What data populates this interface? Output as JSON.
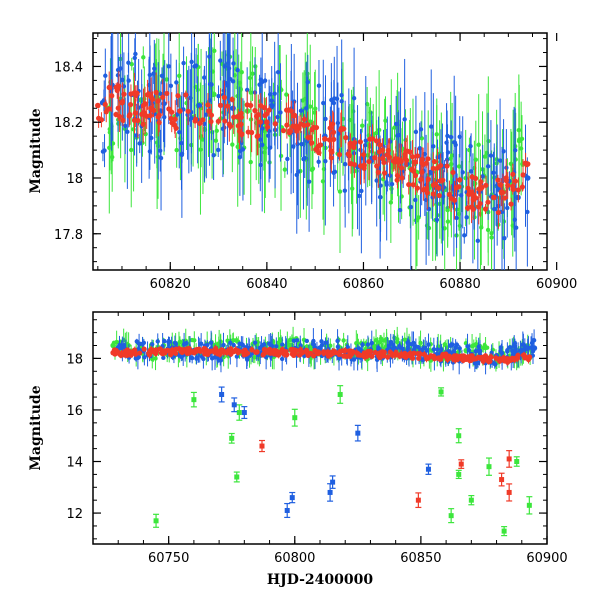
{
  "colors": {
    "blue": "#1f5fe0",
    "green": "#3ce63c",
    "red": "#f03a28",
    "axis": "#000000"
  },
  "chart_data": [
    {
      "type": "scatter",
      "name": "top-panel",
      "title": "",
      "xlabel": "",
      "ylabel": "Magnitude",
      "xlim": [
        60804,
        60898
      ],
      "ylim": [
        18.52,
        17.67
      ],
      "y_inverted": true,
      "xticks": [
        60820,
        60840,
        60860,
        60880,
        60900
      ],
      "xtick_labels": [
        "60820",
        "60840",
        "60860",
        "60880",
        "60900"
      ],
      "yticks": [
        17.8,
        18,
        18.2,
        18.4
      ],
      "ytick_labels": [
        "17.8",
        "18",
        "18.2",
        "18.4"
      ],
      "error_bars": true,
      "grid": false,
      "trend": {
        "note": "magnitude brightens from ~18.27 near 60804 to ~17.93 near 60885"
      },
      "series": [
        {
          "color": "blue",
          "x": [
            60806,
            60812,
            60818,
            60826,
            60833,
            60839,
            60841,
            60846,
            60852,
            60858,
            60864,
            60869,
            60874,
            60879,
            60884,
            60888,
            60892,
            60894
          ],
          "y": [
            18.27,
            18.3,
            18.24,
            18.26,
            18.25,
            18.2,
            18.26,
            18.18,
            18.15,
            18.12,
            18.08,
            18.05,
            18.02,
            17.98,
            17.95,
            17.96,
            17.93,
            18.0
          ]
        },
        {
          "color": "green",
          "x": [
            60807,
            60814,
            60821,
            60829,
            60836,
            60843,
            60849,
            60855,
            60861,
            60866,
            60871,
            60877,
            60883,
            60889,
            60893
          ],
          "y": [
            18.25,
            18.28,
            18.22,
            18.3,
            18.24,
            18.18,
            18.2,
            18.1,
            18.12,
            18.04,
            18.02,
            17.96,
            17.98,
            17.95,
            18.05
          ]
        },
        {
          "color": "red",
          "x": [
            60805,
            60810,
            60816,
            60822,
            60828,
            60834,
            60840,
            60846,
            60852,
            60858,
            60864,
            60870,
            60876,
            60882,
            60887,
            60891,
            60894
          ],
          "y": [
            18.26,
            18.27,
            18.25,
            18.24,
            18.24,
            18.22,
            18.2,
            18.18,
            18.14,
            18.11,
            18.07,
            18.03,
            17.99,
            17.95,
            17.93,
            17.96,
            18.05
          ]
        }
      ]
    },
    {
      "type": "scatter",
      "name": "bottom-panel",
      "title": "",
      "xlabel": "HJD-2400000",
      "ylabel": "Magnitude",
      "xlim": [
        60720,
        60900
      ],
      "ylim": [
        19.8,
        10.8
      ],
      "y_inverted": true,
      "xticks": [
        60750,
        60800,
        60850,
        60900
      ],
      "xtick_labels": [
        "60750",
        "60800",
        "60850",
        "60900"
      ],
      "yticks": [
        12,
        14,
        16,
        18
      ],
      "ytick_labels": [
        "12",
        "14",
        "16",
        "18"
      ],
      "error_bars": true,
      "grid": false,
      "outliers": [
        {
          "color": "green",
          "x": 60745,
          "y": 11.7
        },
        {
          "color": "green",
          "x": 60777,
          "y": 13.4
        },
        {
          "color": "green",
          "x": 60775,
          "y": 14.9
        },
        {
          "color": "green",
          "x": 60778,
          "y": 15.9
        },
        {
          "color": "green",
          "x": 60760,
          "y": 16.4
        },
        {
          "color": "green",
          "x": 60800,
          "y": 15.7
        },
        {
          "color": "green",
          "x": 60818,
          "y": 16.6
        },
        {
          "color": "green",
          "x": 60862,
          "y": 11.9
        },
        {
          "color": "green",
          "x": 60865,
          "y": 13.5
        },
        {
          "color": "green",
          "x": 60870,
          "y": 12.5
        },
        {
          "color": "green",
          "x": 60883,
          "y": 11.3
        },
        {
          "color": "green",
          "x": 60893,
          "y": 12.3
        },
        {
          "color": "green",
          "x": 60888,
          "y": 14.0
        },
        {
          "color": "green",
          "x": 60877,
          "y": 13.8
        },
        {
          "color": "green",
          "x": 60865,
          "y": 15.0
        },
        {
          "color": "green",
          "x": 60858,
          "y": 16.7
        },
        {
          "color": "blue",
          "x": 60797,
          "y": 12.1
        },
        {
          "color": "blue",
          "x": 60799,
          "y": 12.6
        },
        {
          "color": "blue",
          "x": 60814,
          "y": 12.8
        },
        {
          "color": "blue",
          "x": 60815,
          "y": 13.2
        },
        {
          "color": "blue",
          "x": 60825,
          "y": 15.1
        },
        {
          "color": "blue",
          "x": 60853,
          "y": 13.7
        },
        {
          "color": "blue",
          "x": 60780,
          "y": 15.9
        },
        {
          "color": "blue",
          "x": 60771,
          "y": 16.6
        },
        {
          "color": "blue",
          "x": 60776,
          "y": 16.2
        },
        {
          "color": "red",
          "x": 60849,
          "y": 12.5
        },
        {
          "color": "red",
          "x": 60787,
          "y": 14.6
        },
        {
          "color": "red",
          "x": 60866,
          "y": 13.9
        },
        {
          "color": "red",
          "x": 60882,
          "y": 13.3
        },
        {
          "color": "red",
          "x": 60885,
          "y": 12.8
        },
        {
          "color": "red",
          "x": 60885,
          "y": 14.1
        }
      ],
      "series": [
        {
          "color": "blue",
          "x": [
            60730,
            60740,
            60750,
            60760,
            60770,
            60780,
            60790,
            60800,
            60810,
            60820,
            60830,
            60840,
            60850,
            60860,
            60870,
            60880,
            60890,
            60895
          ],
          "y": [
            18.4,
            18.3,
            18.35,
            18.3,
            18.25,
            18.3,
            18.3,
            18.35,
            18.4,
            18.3,
            18.25,
            18.35,
            18.3,
            18.2,
            18.15,
            18.1,
            18.3,
            18.4
          ]
        },
        {
          "color": "green",
          "x": [
            60728,
            60738,
            60748,
            60758,
            60768,
            60778,
            60788,
            60798,
            60808,
            60818,
            60828,
            60838,
            60848,
            60858,
            60868,
            60878,
            60888,
            60894
          ],
          "y": [
            18.5,
            18.3,
            18.2,
            18.4,
            18.3,
            18.4,
            18.3,
            18.5,
            18.3,
            18.4,
            18.3,
            18.5,
            18.3,
            18.2,
            18.3,
            18.1,
            18.2,
            18.3
          ]
        },
        {
          "color": "red",
          "x": [
            60728,
            60735,
            60745,
            60755,
            60765,
            60775,
            60785,
            60795,
            60805,
            60815,
            60825,
            60835,
            60845,
            60855,
            60865,
            60875,
            60885,
            60893
          ],
          "y": [
            18.22,
            18.24,
            18.25,
            18.27,
            18.27,
            18.26,
            18.25,
            18.24,
            18.22,
            18.2,
            18.18,
            18.15,
            18.12,
            18.08,
            18.05,
            18.0,
            17.97,
            18.05
          ]
        }
      ]
    }
  ]
}
